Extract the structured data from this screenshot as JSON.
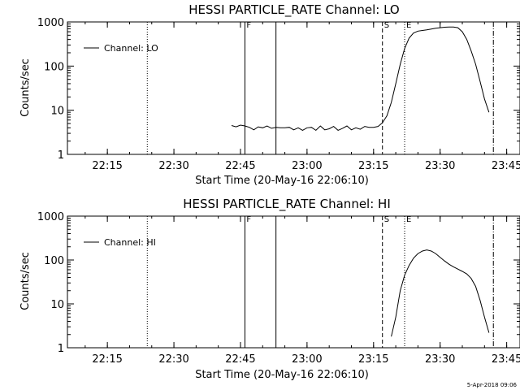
{
  "timestamp": "5-Apr-2018 09:06",
  "chart_data": [
    {
      "type": "line",
      "title": "HESSI PARTICLE_RATE Channel: LO",
      "xlabel": "Start Time (20-May-16 22:06:10)",
      "ylabel": "Counts/sec",
      "y_scale": "log",
      "ylim": [
        1,
        1000
      ],
      "y_ticks": [
        "1",
        "10",
        "100",
        "1000"
      ],
      "x_ticks": [
        "22:15",
        "22:30",
        "22:45",
        "23:00",
        "23:15",
        "23:30",
        "23:45"
      ],
      "legend": {
        "label": "Channel: LO",
        "placement": "top-left"
      },
      "markers": [
        {
          "type": "dotted",
          "time": "22:24",
          "label": ""
        },
        {
          "type": "solid",
          "time": "22:46",
          "label": "F"
        },
        {
          "type": "solid",
          "time": "22:53",
          "label": ""
        },
        {
          "type": "dashed",
          "time": "23:17",
          "label": "S"
        },
        {
          "type": "dotted",
          "time": "23:22",
          "label": "E"
        },
        {
          "type": "dashdot",
          "time": "23:42",
          "label": ""
        }
      ],
      "series": [
        {
          "name": "Channel: LO",
          "points": [
            [
              "22:43",
              4.5
            ],
            [
              "22:44",
              4.2
            ],
            [
              "22:45",
              4.6
            ],
            [
              "22:46",
              4.4
            ],
            [
              "22:47",
              4.1
            ],
            [
              "22:48",
              3.6
            ],
            [
              "22:49",
              4.2
            ],
            [
              "22:50",
              4.0
            ],
            [
              "22:51",
              4.4
            ],
            [
              "22:52",
              3.9
            ],
            [
              "22:53",
              4.1
            ],
            [
              "22:54",
              4.0
            ],
            [
              "22:55",
              4.0
            ],
            [
              "22:56",
              4.1
            ],
            [
              "22:57",
              3.6
            ],
            [
              "22:58",
              4.0
            ],
            [
              "22:59",
              3.5
            ],
            [
              "23:00",
              4.0
            ],
            [
              "23:01",
              4.1
            ],
            [
              "23:02",
              3.5
            ],
            [
              "23:03",
              4.4
            ],
            [
              "23:04",
              3.6
            ],
            [
              "23:05",
              3.8
            ],
            [
              "23:06",
              4.3
            ],
            [
              "23:07",
              3.5
            ],
            [
              "23:08",
              3.9
            ],
            [
              "23:09",
              4.4
            ],
            [
              "23:10",
              3.6
            ],
            [
              "23:11",
              4.0
            ],
            [
              "23:12",
              3.7
            ],
            [
              "23:13",
              4.3
            ],
            [
              "23:14",
              4.1
            ],
            [
              "23:15",
              4.1
            ],
            [
              "23:16",
              4.3
            ],
            [
              "23:17",
              5.2
            ],
            [
              "23:18",
              7.5
            ],
            [
              "23:19",
              15
            ],
            [
              "23:20",
              40
            ],
            [
              "23:21",
              110
            ],
            [
              "23:22",
              250
            ],
            [
              "23:23",
              430
            ],
            [
              "23:24",
              560
            ],
            [
              "23:25",
              620
            ],
            [
              "23:26",
              640
            ],
            [
              "23:27",
              660
            ],
            [
              "23:28",
              690
            ],
            [
              "23:29",
              720
            ],
            [
              "23:30",
              740
            ],
            [
              "23:31",
              760
            ],
            [
              "23:32",
              770
            ],
            [
              "23:33",
              770
            ],
            [
              "23:34",
              740
            ],
            [
              "23:35",
              600
            ],
            [
              "23:36",
              400
            ],
            [
              "23:37",
              220
            ],
            [
              "23:38",
              110
            ],
            [
              "23:39",
              45
            ],
            [
              "23:40",
              18
            ],
            [
              "23:41",
              9
            ]
          ]
        }
      ]
    },
    {
      "type": "line",
      "title": "HESSI PARTICLE_RATE Channel: HI",
      "xlabel": "Start Time (20-May-16 22:06:10)",
      "ylabel": "Counts/sec",
      "y_scale": "log",
      "ylim": [
        1,
        1000
      ],
      "y_ticks": [
        "1",
        "10",
        "100",
        "1000"
      ],
      "x_ticks": [
        "22:15",
        "22:30",
        "22:45",
        "23:00",
        "23:15",
        "23:30",
        "23:45"
      ],
      "legend": {
        "label": "Channel: HI",
        "placement": "top-left"
      },
      "markers": [
        {
          "type": "dotted",
          "time": "22:24",
          "label": ""
        },
        {
          "type": "solid",
          "time": "22:46",
          "label": "F"
        },
        {
          "type": "solid",
          "time": "22:53",
          "label": ""
        },
        {
          "type": "dashed",
          "time": "23:17",
          "label": "S"
        },
        {
          "type": "dotted",
          "time": "23:22",
          "label": "E"
        },
        {
          "type": "dashdot",
          "time": "23:42",
          "label": ""
        }
      ],
      "series": [
        {
          "name": "Channel: HI",
          "points": [
            [
              "23:19",
              1.8
            ],
            [
              "23:20",
              5
            ],
            [
              "23:21",
              20
            ],
            [
              "23:22",
              45
            ],
            [
              "23:23",
              75
            ],
            [
              "23:24",
              110
            ],
            [
              "23:25",
              140
            ],
            [
              "23:26",
              160
            ],
            [
              "23:27",
              170
            ],
            [
              "23:28",
              160
            ],
            [
              "23:29",
              140
            ],
            [
              "23:30",
              115
            ],
            [
              "23:31",
              95
            ],
            [
              "23:32",
              80
            ],
            [
              "23:33",
              70
            ],
            [
              "23:34",
              62
            ],
            [
              "23:35",
              55
            ],
            [
              "23:36",
              48
            ],
            [
              "23:37",
              38
            ],
            [
              "23:38",
              25
            ],
            [
              "23:39",
              12
            ],
            [
              "23:40",
              5
            ],
            [
              "23:41",
              2.2
            ]
          ]
        }
      ]
    }
  ]
}
